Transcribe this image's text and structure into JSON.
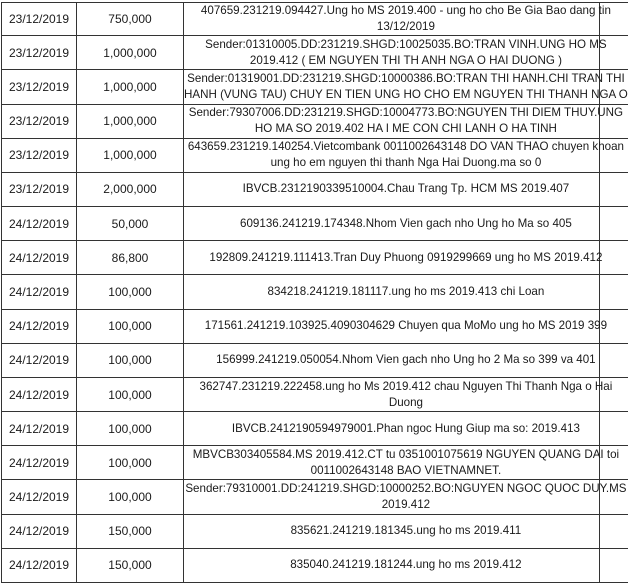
{
  "rows": [
    {
      "date": "23/12/2019",
      "amount": "750,000",
      "lines": [
        "407659.231219.094427.Ung ho MS 2019.400 - ung ho cho Be Gia Bao dang tin",
        "13/12/2019"
      ]
    },
    {
      "date": "23/12/2019",
      "amount": "1,000,000",
      "lines": [
        "Sender:01310005.DD:231219.SHGD:10025035.BO:TRAN VINH.UNG HO MS",
        "2019.412 ( EM NGUYEN THI TH ANH NGA O HAI DUONG )"
      ]
    },
    {
      "date": "23/12/2019",
      "amount": "1,000,000",
      "lines": [
        "Sender:01319001.DD:231219.SHGD:10000386.BO:TRAN THI HANH.CHI TRAN THI",
        "HANH (VUNG TAU) CHUY EN TIEN UNG HO CHO EM NGUYEN THI THANH NGA O"
      ]
    },
    {
      "date": "23/12/2019",
      "amount": "1,000,000",
      "lines": [
        "Sender:79307006.DD:231219.SHGD:10004773.BO:NGUYEN THI DIEM THUY.UNG",
        "HO MA SO 2019.402 HA I ME CON CHI LANH O HA TINH"
      ]
    },
    {
      "date": "23/12/2019",
      "amount": "1,000,000",
      "lines": [
        "643659.231219.140254.Vietcombank 0011002643148 DO VAN THAO chuyen khoan",
        "ung ho em nguyen thi thanh Nga Hai Duong.ma so 0"
      ]
    },
    {
      "date": "23/12/2019",
      "amount": "2,000,000",
      "lines": [
        "IBVCB.2312190339510004.Chau Trang Tp. HCM MS 2019.407"
      ]
    },
    {
      "date": "24/12/2019",
      "amount": "50,000",
      "lines": [
        "609136.241219.174348.Nhom Vien gach nho Ung ho Ma so 405"
      ]
    },
    {
      "date": "24/12/2019",
      "amount": "86,800",
      "lines": [
        "192809.241219.111413.Tran Duy Phuong 0919299669 ung ho MS 2019.412"
      ]
    },
    {
      "date": "24/12/2019",
      "amount": "100,000",
      "lines": [
        "834218.241219.181117.ung ho ms 2019.413 chi Loan"
      ]
    },
    {
      "date": "24/12/2019",
      "amount": "100,000",
      "lines": [
        "171561.241219.103925.4090304629 Chuyen qua MoMo ung ho MS 2019 399"
      ]
    },
    {
      "date": "24/12/2019",
      "amount": "100,000",
      "lines": [
        "156999.241219.050054.Nhom Vien gach nho Ung ho 2 Ma so 399 va 401"
      ]
    },
    {
      "date": "24/12/2019",
      "amount": "100,000",
      "lines": [
        "362747.231219.222458.ung ho Ms 2019.412 chau Nguyen Thi Thanh Nga o Hai",
        "Duong"
      ]
    },
    {
      "date": "24/12/2019",
      "amount": "100,000",
      "lines": [
        "IBVCB.2412190594979001.Phan ngoc Hung Giup ma so: 2019.413"
      ]
    },
    {
      "date": "24/12/2019",
      "amount": "100,000",
      "lines": [
        "MBVCB303405584.MS 2019.412.CT tu 0351001075619 NGUYEN QUANG DAI toi",
        "0011002643148 BAO VIETNAMNET."
      ]
    },
    {
      "date": "24/12/2019",
      "amount": "100,000",
      "lines": [
        "Sender:79310001.DD:241219.SHGD:10000252.BO:NGUYEN NGOC QUOC DUY.MS",
        "2019.412"
      ]
    },
    {
      "date": "24/12/2019",
      "amount": "150,000",
      "lines": [
        "835621.241219.181345.ung ho ms 2019.411"
      ]
    },
    {
      "date": "24/12/2019",
      "amount": "150,000",
      "lines": [
        "835040.241219.181244.ung ho ms 2019.412"
      ]
    }
  ]
}
